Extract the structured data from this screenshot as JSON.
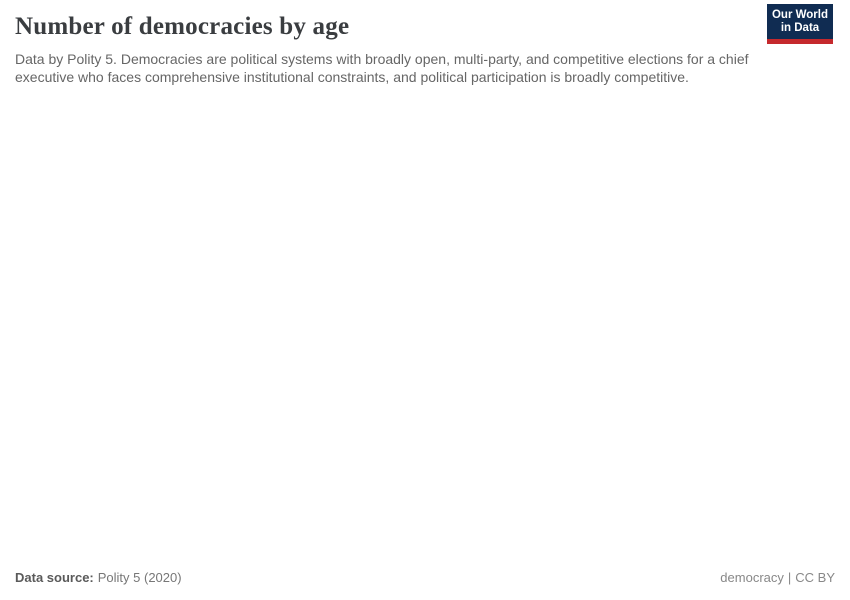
{
  "header": {
    "title": "Number of democracies by age",
    "subtitle": "Data by Polity 5. Democracies are political systems with broadly open, multi-party, and competitive elections for a chief executive who faces comprehensive institutional constraints, and political participation is broadly competitive."
  },
  "logo": {
    "line1": "Our World",
    "line2": "in Data",
    "bg_color": "#102c52",
    "accent_color": "#c5292d",
    "text_color": "#ffffff"
  },
  "chart_data": {
    "type": "line",
    "title": "Number of democracies by age",
    "x": [],
    "series": [],
    "plot_area_rendered": false,
    "note_visible_in_pixels": "plot area is blank/empty in the screenshot"
  },
  "footer": {
    "source_label": "Data source:",
    "source_value": "Polity 5 (2020)",
    "slug": "democracy",
    "separator": "|",
    "license": "CC BY"
  },
  "colors": {
    "title_text": "#3a3d40",
    "subtitle_text": "#666666",
    "footer_text": "#777777",
    "background": "#ffffff"
  }
}
